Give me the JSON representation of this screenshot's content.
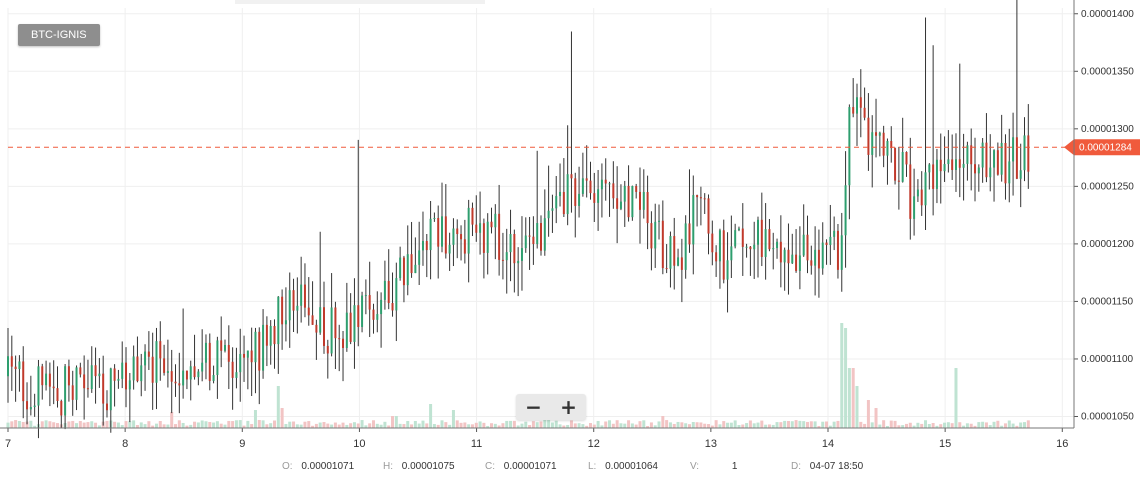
{
  "symbol": "BTC-IGNIS",
  "ohlc": {
    "o_label": "O:",
    "o_value": "0.00001071",
    "h_label": "H:",
    "h_value": "0.00001075",
    "c_label": "C:",
    "c_value": "0.00001071",
    "l_label": "L:",
    "l_value": "0.00001064",
    "v_label": "V:",
    "v_value": "1",
    "d_label": "D:",
    "d_value": "04-07 18:50"
  },
  "zoom": {
    "out_icon": "minus-icon",
    "in_icon": "plus-icon",
    "out_symbol": "−",
    "in_symbol": "+"
  },
  "chart_data": {
    "type": "candlestick",
    "price_axis": {
      "ticks": [
        "0.00001050",
        "0.00001100",
        "0.00001150",
        "0.00001200",
        "0.00001250",
        "0.00001300",
        "0.00001350",
        "0.00001400"
      ],
      "ylim": [
        1.04e-05,
        1.405e-05
      ]
    },
    "time_axis": {
      "ticks": [
        "7",
        "8",
        "9",
        "10",
        "11",
        "12",
        "13",
        "14",
        "15",
        "16"
      ],
      "xlim": [
        7.0,
        16.1
      ]
    },
    "last_price": {
      "label": "0.00001284",
      "value": 1.284e-05
    },
    "colors": {
      "up": "#2e9e6e",
      "down": "#c0392b",
      "wick": "#333333",
      "volume_up": "#bfe3d2",
      "volume_down": "#f2c4c4",
      "grid": "#efefef",
      "last_price": "#f05a3c"
    },
    "grid": true,
    "price_path": [
      [
        7.0,
        10.85
      ],
      [
        7.3,
        10.7
      ],
      [
        7.6,
        10.75
      ],
      [
        7.9,
        10.75
      ],
      [
        8.1,
        10.9
      ],
      [
        8.3,
        10.95
      ],
      [
        8.5,
        11.0
      ],
      [
        8.8,
        10.95
      ],
      [
        9.05,
        11.0
      ],
      [
        9.15,
        11.1
      ],
      [
        9.3,
        11.35
      ],
      [
        9.45,
        11.55
      ],
      [
        9.6,
        11.3
      ],
      [
        9.8,
        11.25
      ],
      [
        10.0,
        11.4
      ],
      [
        10.2,
        11.55
      ],
      [
        10.4,
        11.7
      ],
      [
        10.6,
        12.0
      ],
      [
        10.8,
        12.1
      ],
      [
        11.0,
        12.15
      ],
      [
        11.2,
        12.05
      ],
      [
        11.4,
        12.05
      ],
      [
        11.6,
        12.1
      ],
      [
        11.7,
        12.4
      ],
      [
        11.9,
        12.35
      ],
      [
        12.0,
        12.4
      ],
      [
        12.2,
        12.3
      ],
      [
        12.4,
        12.3
      ],
      [
        12.55,
        12.1
      ],
      [
        12.7,
        11.75
      ],
      [
        12.85,
        12.3
      ],
      [
        13.0,
        12.15
      ],
      [
        13.1,
        11.9
      ],
      [
        13.25,
        12.05
      ],
      [
        13.4,
        12.0
      ],
      [
        13.55,
        11.85
      ],
      [
        13.7,
        11.95
      ],
      [
        13.85,
        12.0
      ],
      [
        14.0,
        11.95
      ],
      [
        14.1,
        11.85
      ],
      [
        14.15,
        12.6
      ],
      [
        14.2,
        13.4
      ],
      [
        14.3,
        13.0
      ],
      [
        14.45,
        12.85
      ],
      [
        14.6,
        12.7
      ],
      [
        14.75,
        12.3
      ],
      [
        14.9,
        12.55
      ],
      [
        15.05,
        12.7
      ],
      [
        15.2,
        12.65
      ],
      [
        15.4,
        12.7
      ],
      [
        15.55,
        12.72
      ],
      [
        15.65,
        12.82
      ],
      [
        15.7,
        12.84
      ]
    ],
    "volume_spikes": [
      [
        8.4,
        16
      ],
      [
        9.12,
        18
      ],
      [
        9.3,
        42
      ],
      [
        9.35,
        20
      ],
      [
        10.3,
        12
      ],
      [
        10.6,
        24
      ],
      [
        10.8,
        18
      ],
      [
        11.6,
        28
      ],
      [
        12.6,
        12
      ],
      [
        14.12,
        105
      ],
      [
        14.15,
        100
      ],
      [
        14.2,
        60
      ],
      [
        14.25,
        42
      ],
      [
        14.35,
        28
      ],
      [
        14.4,
        20
      ],
      [
        15.1,
        60
      ]
    ]
  }
}
